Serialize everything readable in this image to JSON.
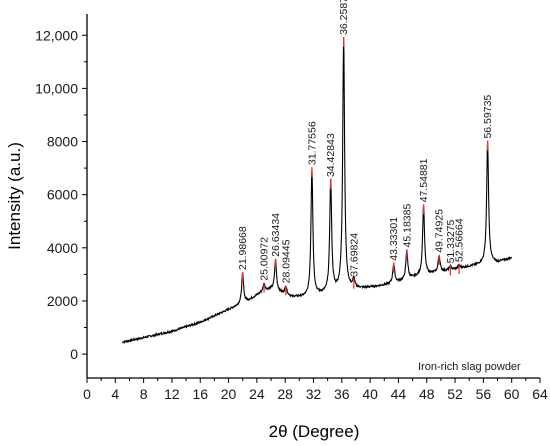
{
  "chart_data": {
    "type": "line",
    "title": "",
    "xlabel": "2θ (Degree)",
    "ylabel": "Intensity (a.u.)",
    "xlim": [
      0,
      64
    ],
    "ylim": [
      -900,
      12800
    ],
    "x_ticks": [
      0,
      4,
      8,
      12,
      16,
      20,
      24,
      28,
      32,
      36,
      40,
      44,
      48,
      52,
      56,
      60,
      64
    ],
    "x_tick_labels": [
      "0",
      "4",
      "8",
      "12",
      "16",
      "20",
      "24",
      "28",
      "32",
      "36",
      "40",
      "44",
      "48",
      "52",
      "56",
      "60",
      "64"
    ],
    "y_ticks": [
      0,
      2000,
      4000,
      6000,
      8000,
      10000,
      12000
    ],
    "y_tick_labels": [
      "0",
      "2000",
      "4000",
      "6000",
      "8000",
      "10,000",
      "12,000"
    ],
    "grid": false,
    "annotation": "Iron-rich slag powder",
    "line_color": "#000000",
    "marker_color": "#ff2a2a",
    "baseline": [
      [
        5,
        450
      ],
      [
        8,
        620
      ],
      [
        12,
        860
      ],
      [
        16,
        1200
      ],
      [
        19,
        1560
      ],
      [
        21,
        1800
      ],
      [
        23,
        2050
      ],
      [
        25,
        2380
      ],
      [
        26,
        2450
      ],
      [
        27,
        2350
      ],
      [
        28,
        2250
      ],
      [
        29,
        2150
      ],
      [
        31,
        2150
      ],
      [
        33,
        2250
      ],
      [
        35,
        2350
      ],
      [
        37,
        2450
      ],
      [
        39,
        2480
      ],
      [
        41,
        2550
      ],
      [
        43,
        2650
      ],
      [
        45,
        2800
      ],
      [
        47,
        2950
      ],
      [
        49,
        3050
      ],
      [
        51,
        3150
      ],
      [
        53,
        3250
      ],
      [
        55,
        3350
      ],
      [
        57,
        3450
      ],
      [
        58,
        3450
      ],
      [
        60,
        3620
      ]
    ],
    "peaks": [
      {
        "x": 21.98668,
        "label": "21.98668",
        "intensity": 3050
      },
      {
        "x": 25.00972,
        "label": "25.00972",
        "intensity": 2650
      },
      {
        "x": 26.63434,
        "label": "26.63434",
        "intensity": 3550
      },
      {
        "x": 28.09445,
        "label": "28.09445",
        "intensity": 2550
      },
      {
        "x": 31.77556,
        "label": "31.77556",
        "intensity": 7000
      },
      {
        "x": 34.42843,
        "label": "34.42843",
        "intensity": 6550
      },
      {
        "x": 36.2587,
        "label": "36.2587",
        "intensity": 11900
      },
      {
        "x": 37.69824,
        "label": "37.69824",
        "intensity": 2800
      },
      {
        "x": 43.33301,
        "label": "43.33301",
        "intensity": 3400
      },
      {
        "x": 45.18385,
        "label": "45.18385",
        "intensity": 3900
      },
      {
        "x": 47.54881,
        "label": "47.54881",
        "intensity": 5600
      },
      {
        "x": 49.74925,
        "label": "49.74925",
        "intensity": 3700
      },
      {
        "x": 51.33275,
        "label": "51.33275",
        "intensity": 3300
      },
      {
        "x": 52.56664,
        "label": "52.56664",
        "intensity": 3350
      },
      {
        "x": 56.59735,
        "label": "56.59735",
        "intensity": 8000
      }
    ]
  }
}
